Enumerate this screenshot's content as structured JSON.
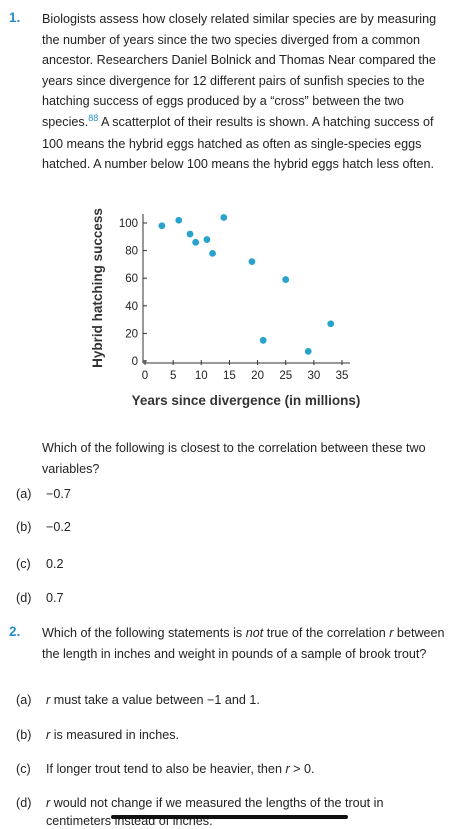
{
  "q1": {
    "number": "1.",
    "text_before_cite": "Biologists assess how closely related similar species are by measuring the number of years since the two species diverged from a common ancestor. Researchers Daniel Bolnick and Thomas Near compared the years since divergence for 12 different pairs of sunfish species to the hatching success of eggs produced by a “cross” between the two species.",
    "cite": "88",
    "text_after_cite": " A scatterplot of their results is shown. A hatching success of 100 means the hybrid eggs hatched as often as single-species eggs hatched. A number below 100 means the hybrid eggs hatch less often.",
    "question": "Which of the following is closest to the correlation between these two variables?",
    "choices": [
      {
        "label": "(a)",
        "text": "−0.7"
      },
      {
        "label": "(b)",
        "text": "−0.2"
      },
      {
        "label": "(c)",
        "text": "0.2"
      },
      {
        "label": "(d)",
        "text": "0.7"
      }
    ]
  },
  "chart_data": {
    "type": "scatter",
    "xlabel": "Years since divergence (in millions)",
    "ylabel": "Hybrid hatching success",
    "xlim": [
      0,
      35
    ],
    "ylim": [
      0,
      100
    ],
    "xticks": [
      "0",
      "5",
      "10",
      "15",
      "20",
      "25",
      "30",
      "35"
    ],
    "yticks": [
      "0",
      "20",
      "40",
      "60",
      "80",
      "100"
    ],
    "x": [
      3,
      6,
      8,
      9,
      11,
      12,
      14,
      19,
      21,
      25,
      29,
      33
    ],
    "y": [
      98,
      102,
      92,
      86,
      88,
      78,
      104,
      72,
      15,
      59,
      7,
      27
    ],
    "point_color": "#2aa3cc",
    "grid": false
  },
  "q2": {
    "number": "2.",
    "question_pre": "Which of the following statements is ",
    "question_em": "not",
    "question_post": " true of the correlation ",
    "question_r": "r",
    "question_end": " between the length in inches and weight in pounds of a sample of brook trout?",
    "choices": [
      {
        "label": "(a)",
        "r": "r",
        "text": " must take a value between −1 and 1."
      },
      {
        "label": "(b)",
        "r": "r",
        "text": " is measured in inches."
      },
      {
        "label": "(c)",
        "pre": "If longer trout tend to also be heavier, then ",
        "r": "r",
        "text": " > 0."
      },
      {
        "label": "(d)",
        "r": "r",
        "text": " would not change if we measured the lengths of the trout in",
        "line2": "centimeters instead of inches."
      }
    ]
  }
}
